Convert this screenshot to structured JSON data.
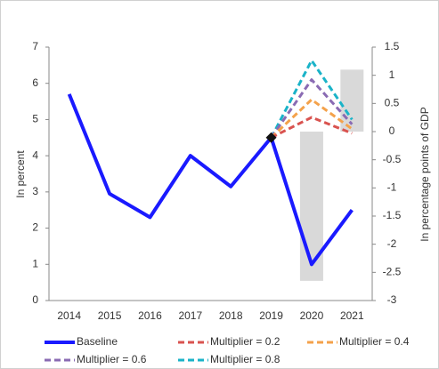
{
  "chart_data": {
    "type": "line",
    "categories": [
      "2014",
      "2015",
      "2016",
      "2017",
      "2018",
      "2019",
      "2020",
      "2021"
    ],
    "ylabel": "In percent",
    "y2label": "In percentage points of GDP",
    "ylim": [
      0,
      7
    ],
    "yticks": [
      0,
      1,
      2,
      3,
      4,
      5,
      6,
      7
    ],
    "y2lim": [
      -3,
      1.5
    ],
    "y2ticks": [
      -3,
      -2.5,
      -2,
      -1.5,
      -1,
      -0.5,
      0,
      0.5,
      1,
      1.5
    ],
    "bars": {
      "color": "#d9d9d9",
      "axis": "y2",
      "values": [
        null,
        null,
        null,
        null,
        null,
        null,
        -2.65,
        1.1
      ]
    },
    "series": [
      {
        "name": "Baseline",
        "color": "#1a1aff",
        "dash": false,
        "values": [
          5.7,
          2.95,
          2.3,
          4.0,
          3.15,
          4.5,
          1.0,
          2.5
        ]
      },
      {
        "name": "Multiplier = 0.2",
        "color": "#d9534f",
        "dash": true,
        "values": [
          null,
          null,
          null,
          null,
          null,
          4.5,
          5.06,
          4.62
        ]
      },
      {
        "name": "Multiplier = 0.4",
        "color": "#f4a24b",
        "dash": true,
        "values": [
          null,
          null,
          null,
          null,
          null,
          4.5,
          5.55,
          4.74
        ]
      },
      {
        "name": "Multiplier = 0.6",
        "color": "#8a6bb3",
        "dash": true,
        "values": [
          null,
          null,
          null,
          null,
          null,
          4.5,
          6.1,
          4.87
        ]
      },
      {
        "name": "Multiplier = 0.8",
        "color": "#1ab3c8",
        "dash": true,
        "values": [
          null,
          null,
          null,
          null,
          null,
          4.5,
          6.63,
          5.0
        ]
      }
    ]
  }
}
